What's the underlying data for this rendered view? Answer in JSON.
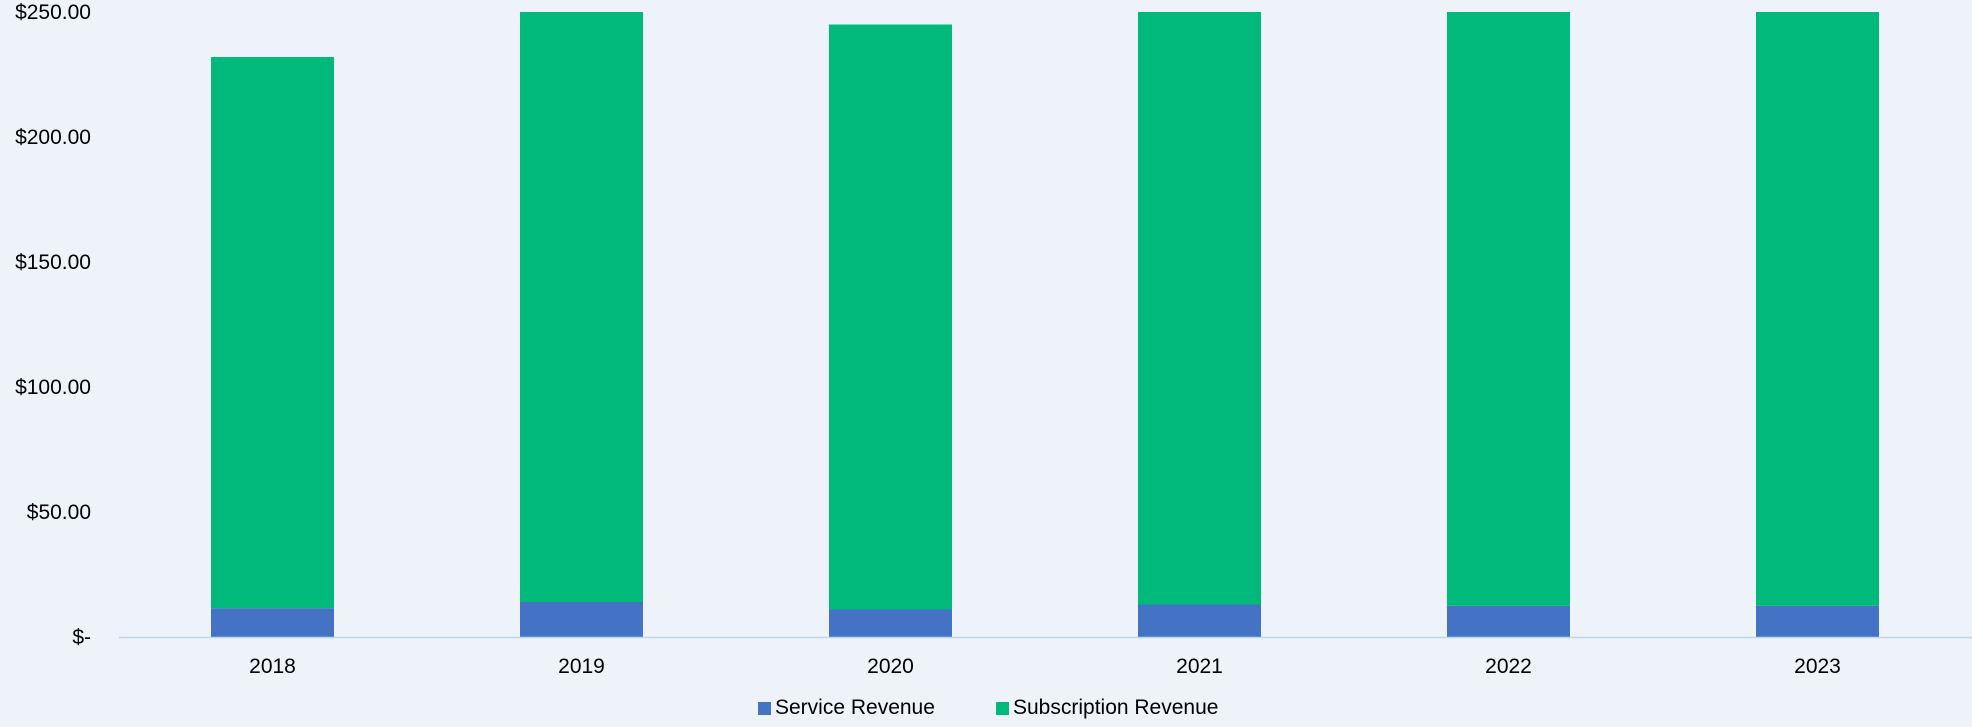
{
  "colors": {
    "background": "#EDF3F9",
    "axis_line": "#BDD7EE",
    "service": "#4472C4",
    "subscription": "#00B97A"
  },
  "chart_data": {
    "type": "bar",
    "stacked": true,
    "title": "",
    "xlabel": "",
    "ylabel": "",
    "categories": [
      "2018",
      "2019",
      "2020",
      "2021",
      "2022",
      "2023"
    ],
    "series": [
      {
        "name": "Service Revenue",
        "color": "#4472C4",
        "values": [
          11.5,
          14,
          11,
          13,
          12.5,
          12.5
        ]
      },
      {
        "name": "Subscription Revenue",
        "color": "#00B97A",
        "values": [
          220.5,
          236,
          234,
          237,
          237.5,
          237.5
        ]
      }
    ],
    "ylim": [
      0,
      250
    ],
    "yticks": [
      0,
      50,
      100,
      150,
      200,
      250
    ],
    "ytick_labels": [
      "$-",
      "$50.00",
      "$100.00",
      "$150.00",
      "$200.00",
      "$250.00"
    ],
    "grid": false,
    "legend": {
      "position": "bottom",
      "entries": [
        "Service Revenue",
        "Subscription Revenue"
      ]
    }
  }
}
